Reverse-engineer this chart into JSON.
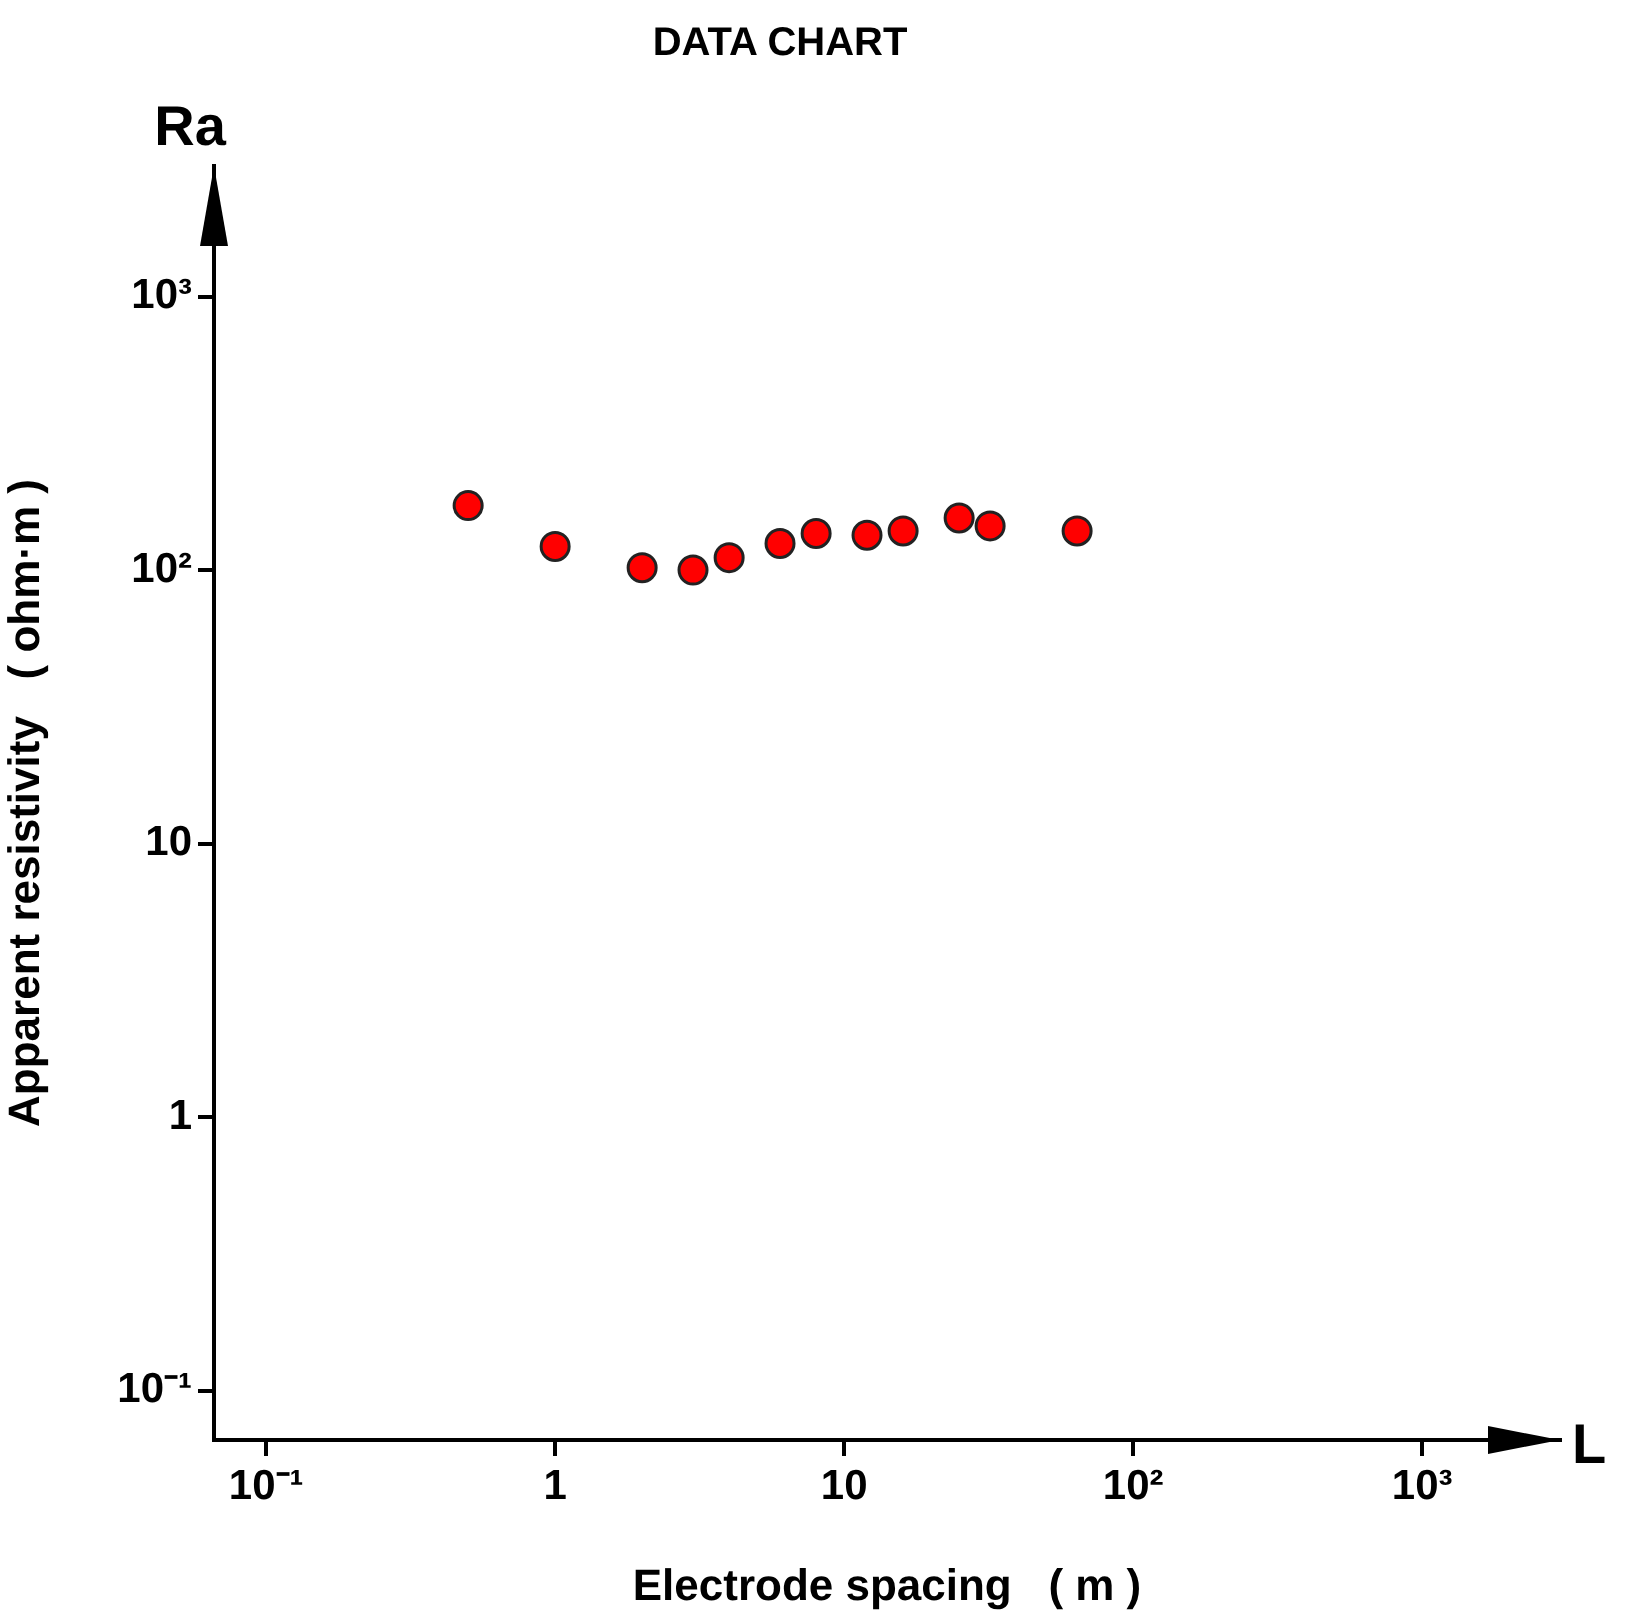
{
  "chart_data": {
    "type": "scatter",
    "title": "DATA CHART",
    "xlabel": "Electrode spacing   ( m )",
    "ylabel": "Apparent resistivity   ( ohm·m )",
    "annotations": [
      "Ra",
      "L"
    ],
    "log": "xy",
    "xlim": [
      0.066,
      3000
    ],
    "ylim": [
      0.066,
      3000
    ],
    "xticks": [
      {
        "value": 0.1,
        "label": "10⁻¹"
      },
      1,
      10,
      {
        "value": 100,
        "label": "10²"
      },
      {
        "value": 1000,
        "label": "10³"
      }
    ],
    "yticks": [
      {
        "value": 0.1,
        "label": "10⁻¹"
      },
      1,
      10,
      {
        "value": 100,
        "label": "10²"
      },
      {
        "value": 1000,
        "label": "10³"
      }
    ],
    "grid": false,
    "legend": false,
    "marker": "circle",
    "series": [
      {
        "color": "#ff0000",
        "x": [
          0.5,
          1,
          2,
          3,
          4,
          6,
          8,
          12,
          16,
          25,
          32,
          64
        ],
        "values": [
          172,
          122,
          102,
          100,
          111,
          125,
          136,
          134,
          139,
          155,
          145,
          139
        ]
      }
    ]
  }
}
